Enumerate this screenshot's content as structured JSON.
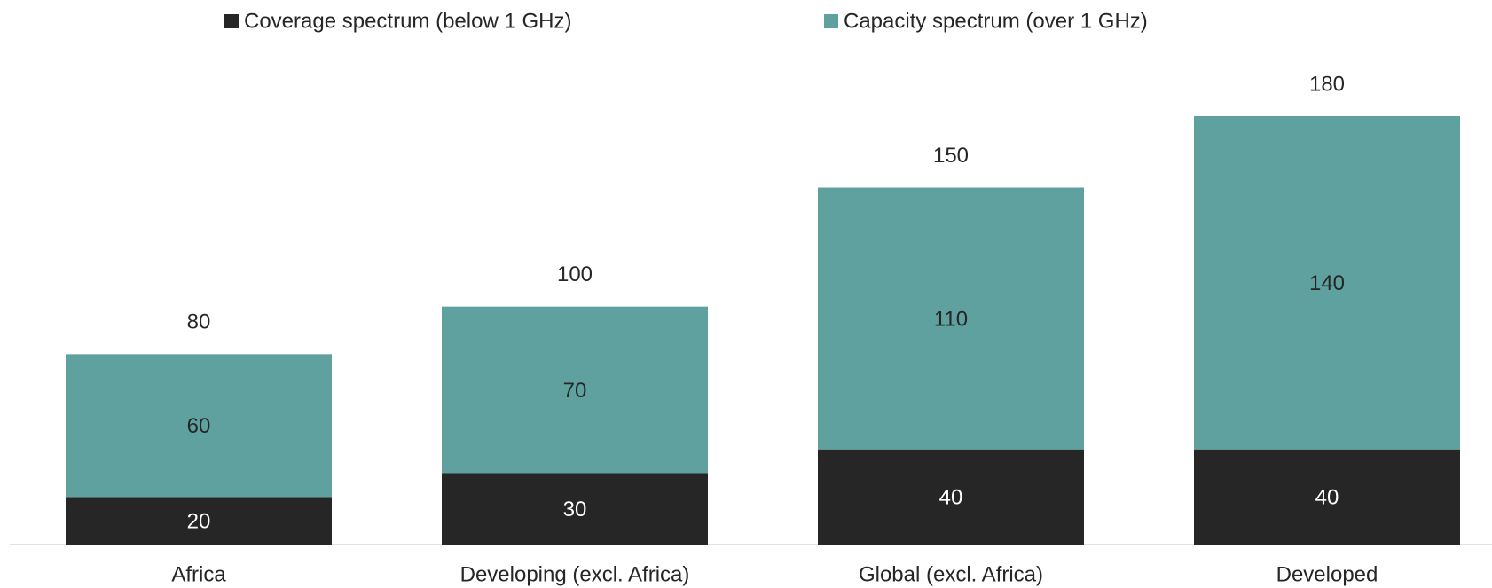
{
  "chart_data": {
    "type": "stacked_bar",
    "categories": [
      "Africa",
      "Developing (excl. Africa)",
      "Global (excl. Africa)",
      "Developed"
    ],
    "series": [
      {
        "name": "Coverage spectrum (below 1 GHz)",
        "color": "#262626",
        "values": [
          20,
          30,
          40,
          40
        ]
      },
      {
        "name": "Capacity spectrum (over 1 GHz)",
        "color": "#5fa19e",
        "values": [
          60,
          70,
          110,
          140
        ]
      }
    ],
    "totals": [
      80,
      100,
      150,
      180
    ],
    "ylim": [
      0,
      180
    ],
    "legend": "top"
  }
}
